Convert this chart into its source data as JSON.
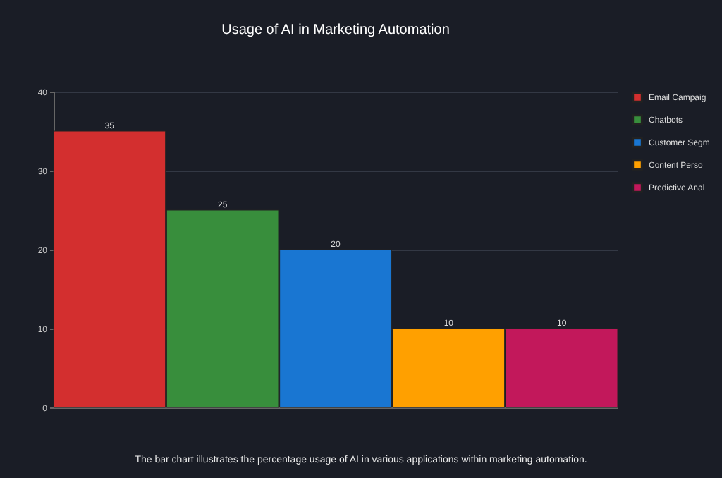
{
  "chart_data": {
    "type": "bar",
    "title": "Usage of AI in Marketing Automation",
    "categories": [
      null,
      null,
      null,
      null,
      null
    ],
    "series": [
      {
        "name": "Email Campaig",
        "color": "#d32f2f",
        "values": [
          35,
          null,
          null,
          null,
          null
        ]
      },
      {
        "name": "Chatbots",
        "color": "#388e3c",
        "values": [
          null,
          25,
          null,
          null,
          null
        ]
      },
      {
        "name": "Customer Segm",
        "color": "#1976d2",
        "values": [
          null,
          null,
          20,
          null,
          null
        ]
      },
      {
        "name": "Content Perso",
        "color": "#ffa000",
        "values": [
          null,
          null,
          null,
          10,
          null
        ]
      },
      {
        "name": "Predictive Anal",
        "color": "#c2185b",
        "values": [
          null,
          null,
          null,
          null,
          10
        ]
      }
    ],
    "ylim": [
      0,
      40
    ],
    "yticks": [
      0,
      10,
      20,
      30,
      40
    ],
    "grid": "y",
    "legend": "right",
    "tick_labels": "y",
    "data_labels": true,
    "annotations": [
      "The bar chart illustrates the percentage usage of AI in various applications within marketing automation."
    ]
  }
}
